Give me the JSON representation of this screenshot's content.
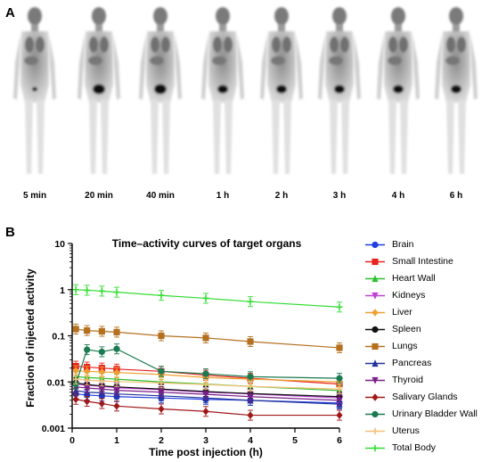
{
  "panel_labels": {
    "a": "A",
    "b": "B"
  },
  "scans": {
    "times": [
      "5 min",
      "20 min",
      "40 min",
      "1 h",
      "2 h",
      "3 h",
      "4 h",
      "6 h"
    ]
  },
  "chart_data": {
    "type": "line",
    "title": "Time–activity curves of target organs",
    "xlabel": "Time post injection (h)",
    "ylabel": "Fraction of injected activity",
    "yscale": "log",
    "xlim": [
      0,
      6
    ],
    "ylim": [
      0.001,
      10
    ],
    "xticks": [
      "0",
      "1",
      "2",
      "3",
      "4",
      "5",
      "6"
    ],
    "yticks": [
      "0.001",
      "0.01",
      "0.1",
      "1",
      "10"
    ],
    "x": [
      0.083,
      0.333,
      0.667,
      1,
      2,
      3,
      4,
      6
    ],
    "legend_position": "right",
    "series": [
      {
        "name": "Brain",
        "color": "#1f3fe0",
        "marker": "circle",
        "values": [
          0.0055,
          0.0052,
          0.005,
          0.0048,
          0.0045,
          0.0042,
          0.004,
          0.0035
        ]
      },
      {
        "name": "Small Intestine",
        "color": "#e8231f",
        "marker": "square",
        "values": [
          0.022,
          0.021,
          0.02,
          0.019,
          0.017,
          0.014,
          0.012,
          0.009
        ]
      },
      {
        "name": "Heart Wall",
        "color": "#2fbf2f",
        "marker": "triangle",
        "values": [
          0.013,
          0.0125,
          0.012,
          0.0115,
          0.01,
          0.009,
          0.008,
          0.0065
        ]
      },
      {
        "name": "Kidneys",
        "color": "#c040d8",
        "marker": "triangle-down",
        "values": [
          0.009,
          0.0085,
          0.008,
          0.0075,
          0.0068,
          0.006,
          0.0055,
          0.0045
        ]
      },
      {
        "name": "Liver",
        "color": "#f0a030",
        "marker": "diamond",
        "values": [
          0.0175,
          0.017,
          0.0165,
          0.016,
          0.0145,
          0.0125,
          0.0115,
          0.01
        ]
      },
      {
        "name": "Spleen",
        "color": "#111111",
        "marker": "circle",
        "values": [
          0.0095,
          0.0088,
          0.0082,
          0.0078,
          0.007,
          0.0062,
          0.0056,
          0.0048
        ]
      },
      {
        "name": "Lungs",
        "color": "#b5701f",
        "marker": "square",
        "values": [
          0.14,
          0.13,
          0.125,
          0.12,
          0.1,
          0.09,
          0.075,
          0.055
        ]
      },
      {
        "name": "Pancreas",
        "color": "#223399",
        "marker": "triangle",
        "values": [
          0.0065,
          0.006,
          0.0058,
          0.0055,
          0.005,
          0.0045,
          0.004,
          0.0033
        ]
      },
      {
        "name": "Thyroid",
        "color": "#7a1f8a",
        "marker": "triangle-down",
        "values": [
          0.0078,
          0.0074,
          0.007,
          0.0066,
          0.006,
          0.0054,
          0.0048,
          0.004
        ]
      },
      {
        "name": "Salivary Glands",
        "color": "#a01818",
        "marker": "diamond",
        "values": [
          0.0042,
          0.0038,
          0.0034,
          0.003,
          0.0026,
          0.0023,
          0.0019,
          0.0019
        ]
      },
      {
        "name": "Urinary Bladder Wall",
        "color": "#1a7a50",
        "marker": "circle",
        "values": [
          0.009,
          0.05,
          0.045,
          0.052,
          0.017,
          0.015,
          0.013,
          0.012
        ]
      },
      {
        "name": "Uterus",
        "color": "#f5c078",
        "marker": "plus",
        "values": [
          0.0115,
          0.011,
          0.0105,
          0.0102,
          0.0095,
          0.0088,
          0.008,
          0.007
        ]
      },
      {
        "name": "Total Body",
        "color": "#33dd33",
        "marker": "plus",
        "values": [
          1.0,
          0.97,
          0.93,
          0.88,
          0.75,
          0.65,
          0.55,
          0.42
        ]
      }
    ]
  }
}
